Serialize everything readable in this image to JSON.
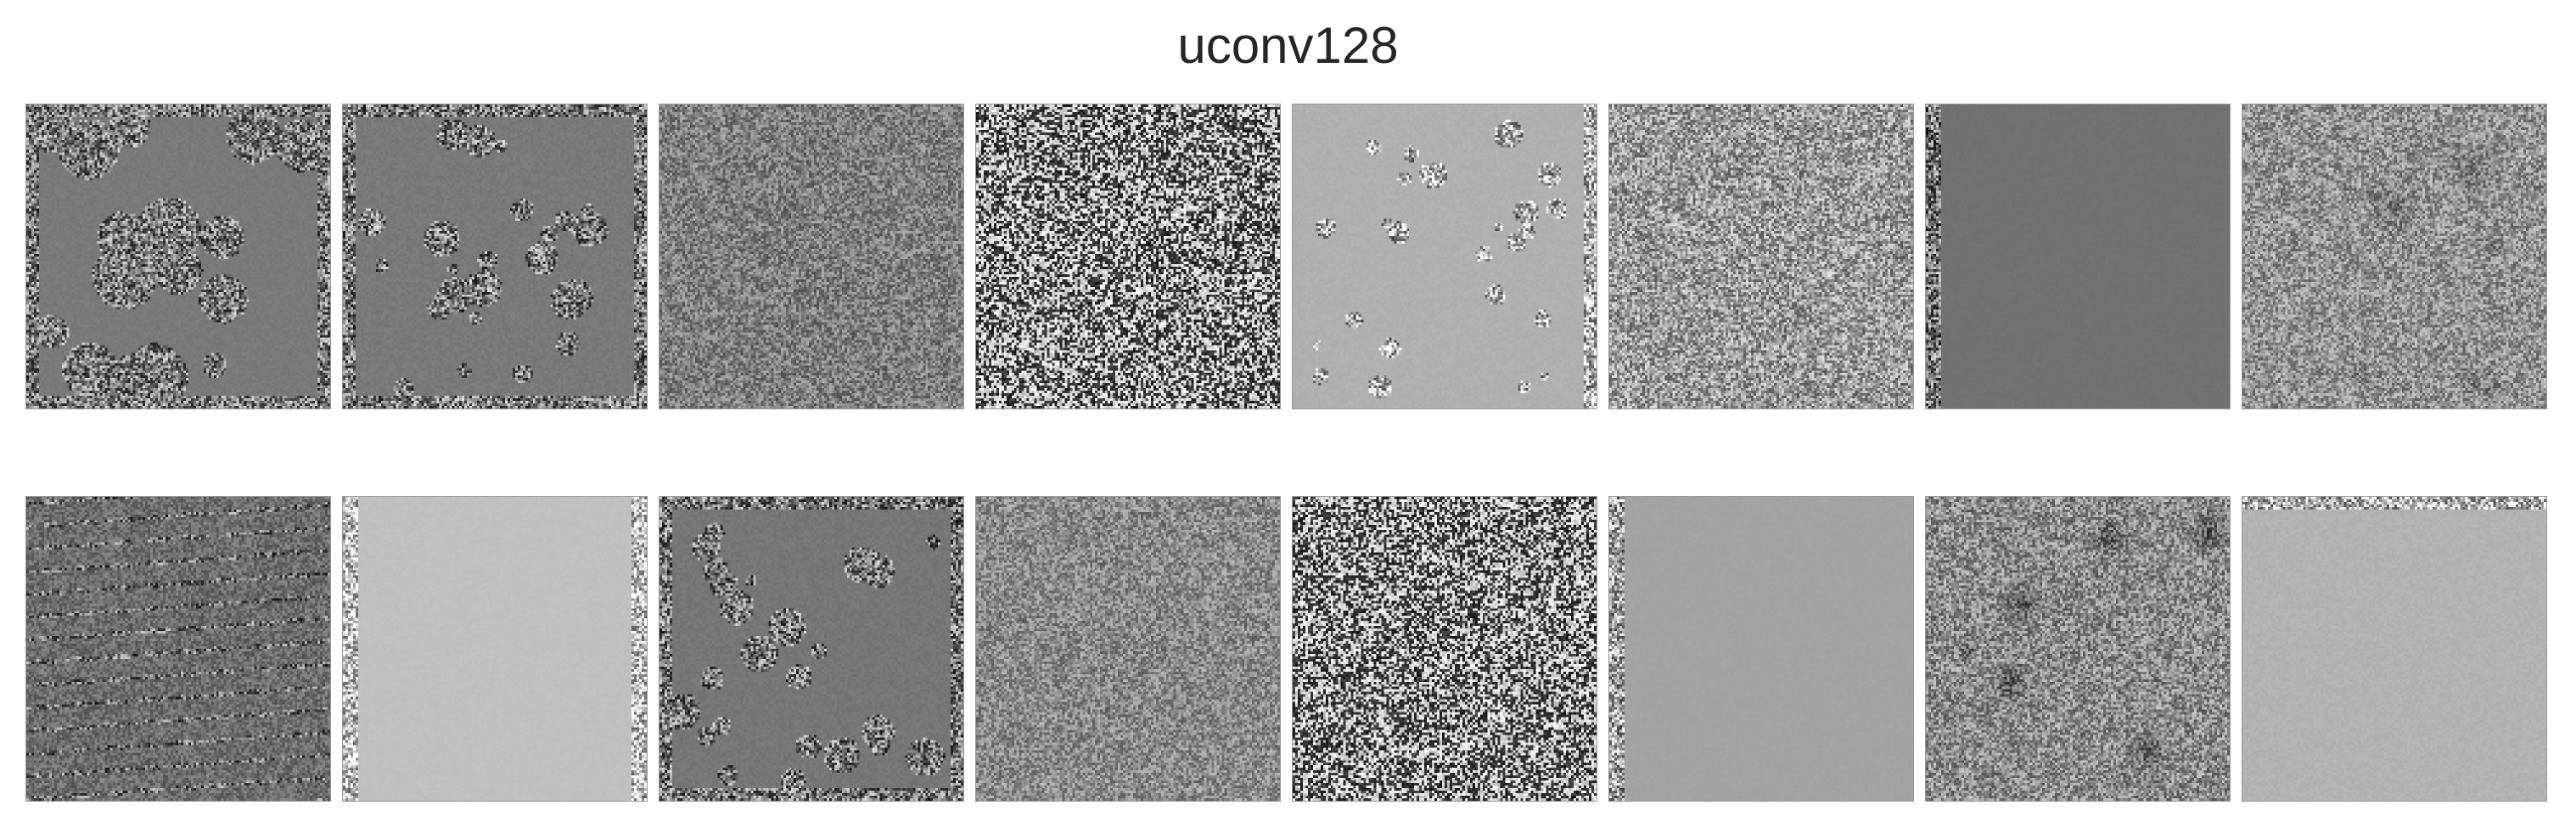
{
  "figure": {
    "title": "uconv128"
  },
  "rows": [
    {
      "panels": [
        {
          "pattern": "blobs",
          "base": "#7a7a7a"
        },
        {
          "pattern": "sparse-dots",
          "base": "#7a7a7a"
        },
        {
          "pattern": "fine-texture",
          "base": "#7f7f7f"
        },
        {
          "pattern": "binary-noise",
          "base": "#808080"
        },
        {
          "pattern": "light-dots",
          "base": "#b0b0b0"
        },
        {
          "pattern": "dense-texture",
          "base": "#9a9a9a"
        },
        {
          "pattern": "flat-dark-left-edge",
          "base": "#727272"
        },
        {
          "pattern": "texture-faint-blobs",
          "base": "#939393"
        }
      ]
    },
    {
      "panels": [
        {
          "pattern": "dark-streaks",
          "base": "#6e6e6e"
        },
        {
          "pattern": "light-flat-edges",
          "base": "#c0c0c0"
        },
        {
          "pattern": "sparse-dots",
          "base": "#777777"
        },
        {
          "pattern": "fine-texture",
          "base": "#8a8a8a"
        },
        {
          "pattern": "binary-noise",
          "base": "#808080"
        },
        {
          "pattern": "flat-mid-left-edge",
          "base": "#a3a3a3"
        },
        {
          "pattern": "texture-dark-blotches",
          "base": "#8c8c8c"
        },
        {
          "pattern": "light-flat-top-edge",
          "base": "#b2b2b2"
        }
      ]
    }
  ]
}
